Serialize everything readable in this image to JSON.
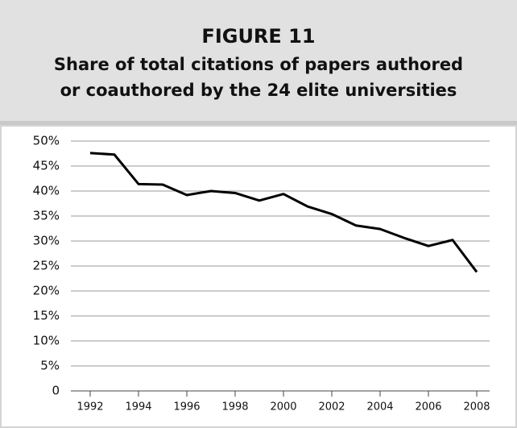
{
  "chart_data": {
    "type": "line",
    "figure_label": "FIGURE 11",
    "title_lines": [
      "Share of total citations of papers authored",
      "or coauthored by the 24 elite universities"
    ],
    "x": [
      1992,
      1993,
      1994,
      1995,
      1996,
      1997,
      1998,
      1999,
      2000,
      2001,
      2002,
      2003,
      2004,
      2005,
      2006,
      2007,
      2008
    ],
    "series": [
      {
        "name": "Share of total citations",
        "color": "#000000",
        "values": [
          47.6,
          47.3,
          41.4,
          41.3,
          39.2,
          40.0,
          39.6,
          38.1,
          39.4,
          36.9,
          35.4,
          33.1,
          32.4,
          30.6,
          29.0,
          30.2,
          23.8
        ]
      }
    ],
    "xlim": [
      1992,
      2008
    ],
    "xticks": [
      1992,
      1994,
      1996,
      1998,
      2000,
      2002,
      2004,
      2006,
      2008
    ],
    "ylim": [
      0,
      50
    ],
    "yticks": [
      0,
      {
        "value": 5,
        "label": "5%"
      },
      {
        "value": 10,
        "label": "10%"
      },
      {
        "value": 15,
        "label": "15%"
      },
      {
        "value": 20,
        "label": "20%"
      },
      {
        "value": 25,
        "label": "25%"
      },
      {
        "value": 30,
        "label": "30%"
      },
      {
        "value": 35,
        "label": "35%"
      },
      {
        "value": 40,
        "label": "40%"
      },
      {
        "value": 45,
        "label": "45%"
      },
      {
        "value": 50,
        "label": "50%"
      }
    ],
    "grid": true
  }
}
